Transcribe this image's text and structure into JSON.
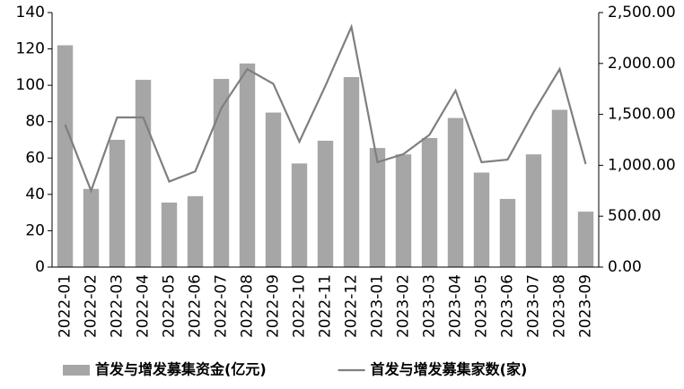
{
  "chart_data": {
    "type": "bar-line",
    "categories": [
      "2022-01",
      "2022-02",
      "2022-03",
      "2022-04",
      "2022-05",
      "2022-06",
      "2022-07",
      "2022-08",
      "2022-09",
      "2022-10",
      "2022-11",
      "2022-12",
      "2023-01",
      "2023-02",
      "2023-03",
      "2023-04",
      "2023-05",
      "2023-06",
      "2023-07",
      "2023-08",
      "2023-09"
    ],
    "series": [
      {
        "name": "首发与增发募集资金(亿元)",
        "type": "bar",
        "color": "#a6a6a6",
        "values": [
          122,
          43,
          70,
          103,
          35.5,
          39,
          103.5,
          112,
          85,
          57,
          69.5,
          104.5,
          65.5,
          62,
          71,
          82,
          52,
          37.5,
          62,
          86.5,
          30.5
        ]
      },
      {
        "name": "首发与增发募集家数(家)",
        "type": "line",
        "axis": "y2",
        "color": "#7f7f7f",
        "values": [
          1400,
          750,
          1470,
          1470,
          840,
          940,
          1560,
          1945,
          1800,
          1232,
          1780,
          2360,
          1030,
          1110,
          1300,
          1734,
          1030,
          1056,
          1522,
          1945,
          1012
        ]
      }
    ],
    "ylim": [
      0,
      140
    ],
    "yticks": [
      0,
      20,
      40,
      60,
      80,
      100,
      120,
      140
    ],
    "y2lim": [
      0,
      2500
    ],
    "y2ticks": [
      {
        "value": 0,
        "label": "0.00"
      },
      {
        "value": 500,
        "label": "500.00"
      },
      {
        "value": 1000,
        "label": "1,000.00"
      },
      {
        "value": 1500,
        "label": "1,500.00"
      },
      {
        "value": 2000,
        "label": "2,000.00"
      },
      {
        "value": 2500,
        "label": "2,500.00"
      }
    ],
    "grid": false,
    "legend": "bottom"
  }
}
